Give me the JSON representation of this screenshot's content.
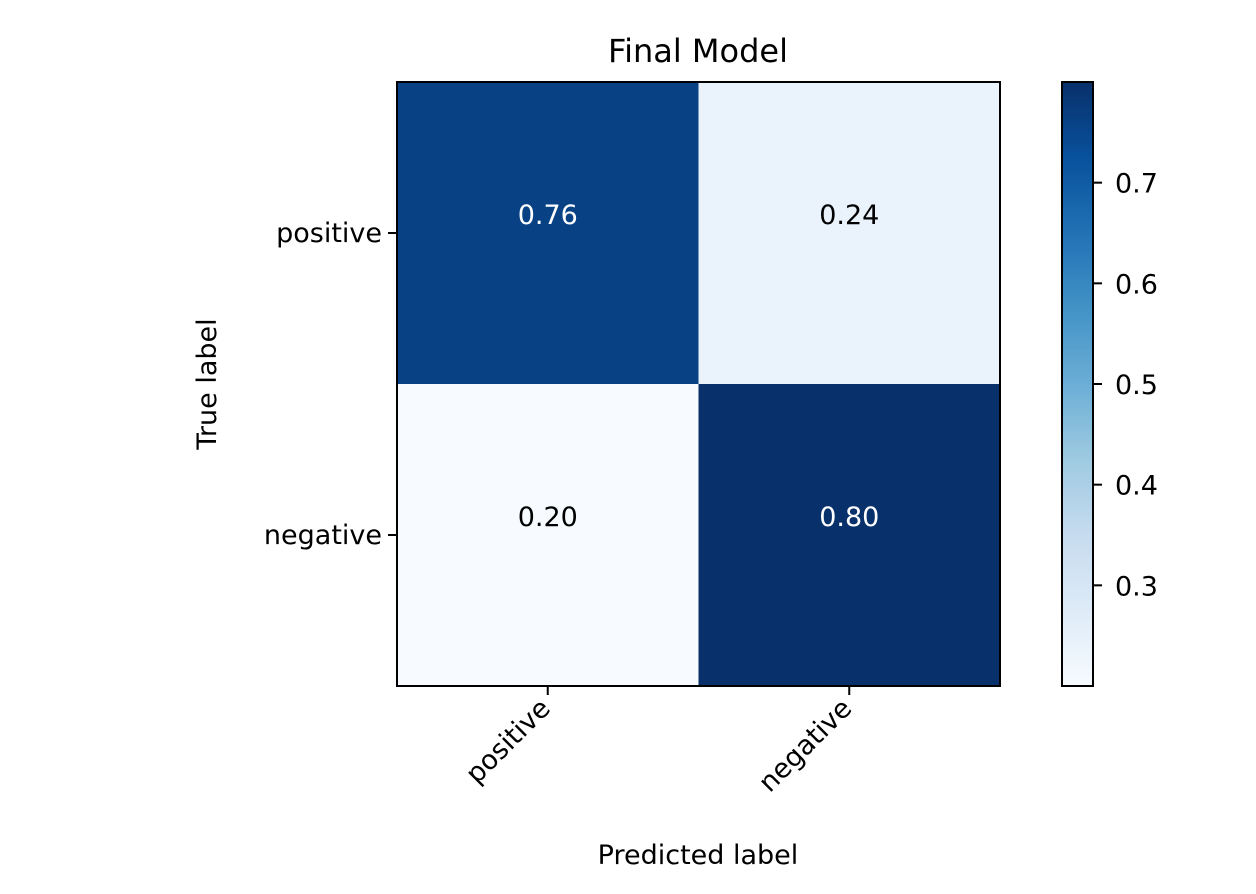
{
  "chart_data": {
    "type": "heatmap",
    "title": "Final Model",
    "xlabel": "Predicted label",
    "ylabel": "True label",
    "x_categories": [
      "positive",
      "negative"
    ],
    "y_categories": [
      "positive",
      "negative"
    ],
    "values": [
      [
        0.76,
        0.24
      ],
      [
        0.2,
        0.8
      ]
    ],
    "cell_labels": [
      [
        "0.76",
        "0.24"
      ],
      [
        "0.20",
        "0.80"
      ]
    ],
    "colormap": "Blues",
    "colorbar": {
      "range": [
        0.2,
        0.8
      ],
      "ticks": [
        0.3,
        0.4,
        0.5,
        0.6,
        0.7
      ],
      "tick_labels": [
        "0.3",
        "0.4",
        "0.5",
        "0.6",
        "0.7"
      ]
    },
    "grid": false,
    "x_tick_rotation": "45 degrees"
  }
}
